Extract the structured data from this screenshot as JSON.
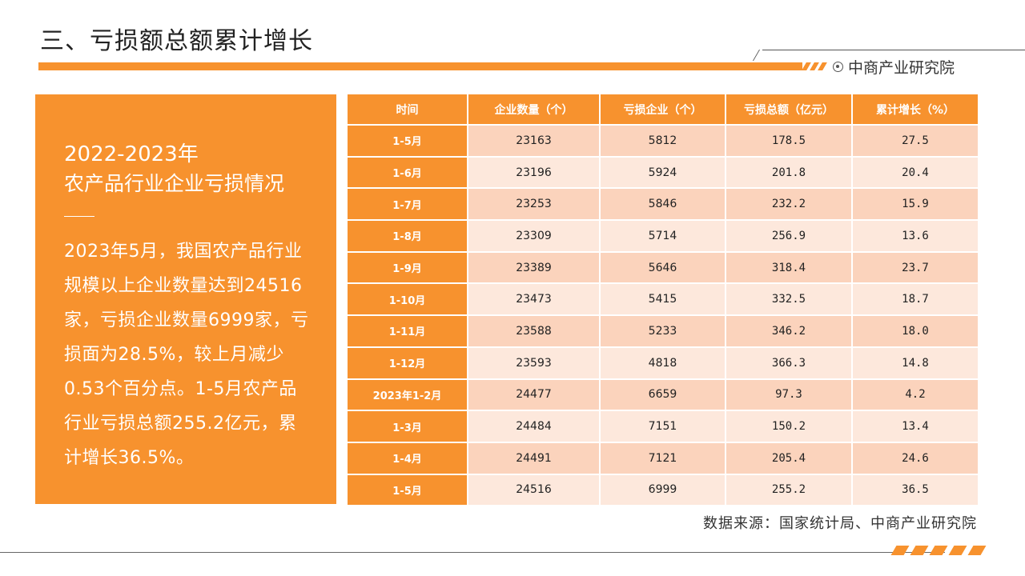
{
  "header": {
    "title": "三、亏损额总额累计增长",
    "brand": "中商产业研究院"
  },
  "summary": {
    "year_range": "2022-2023年",
    "subtitle": "农产品行业企业亏损情况",
    "body": "2023年5月，我国农产品行业规模以上企业数量达到24516家，亏损企业数量6999家，亏损面为28.5%，较上月减少0.53个百分点。1-5月农产品行业亏损总额255.2亿元，累计增长36.5%。"
  },
  "table": {
    "headers": [
      "时间",
      "企业数量（个）",
      "亏损企业（个）",
      "亏损总额（亿元）",
      "累计增长（%）"
    ],
    "rows": [
      [
        "1-5月",
        "23163",
        "5812",
        "178.5",
        "27.5"
      ],
      [
        "1-6月",
        "23196",
        "5924",
        "201.8",
        "20.4"
      ],
      [
        "1-7月",
        "23253",
        "5846",
        "232.2",
        "15.9"
      ],
      [
        "1-8月",
        "23309",
        "5714",
        "256.9",
        "13.6"
      ],
      [
        "1-9月",
        "23389",
        "5646",
        "318.4",
        "23.7"
      ],
      [
        "1-10月",
        "23473",
        "5415",
        "332.5",
        "18.7"
      ],
      [
        "1-11月",
        "23588",
        "5233",
        "346.2",
        "18.0"
      ],
      [
        "1-12月",
        "23593",
        "4818",
        "366.3",
        "14.8"
      ],
      [
        "2023年1-2月",
        "24477",
        "6659",
        "97.3",
        "4.2"
      ],
      [
        "1-3月",
        "24484",
        "7151",
        "150.2",
        "13.4"
      ],
      [
        "1-4月",
        "24491",
        "7121",
        "205.4",
        "24.6"
      ],
      [
        "1-5月",
        "24516",
        "6999",
        "255.2",
        "36.5"
      ]
    ]
  },
  "footer": {
    "source": "数据来源：国家统计局、中商产业研究院"
  },
  "colors": {
    "accent": "#f7922e",
    "row_odd": "#fbd3bc",
    "row_even": "#fde8dc"
  }
}
